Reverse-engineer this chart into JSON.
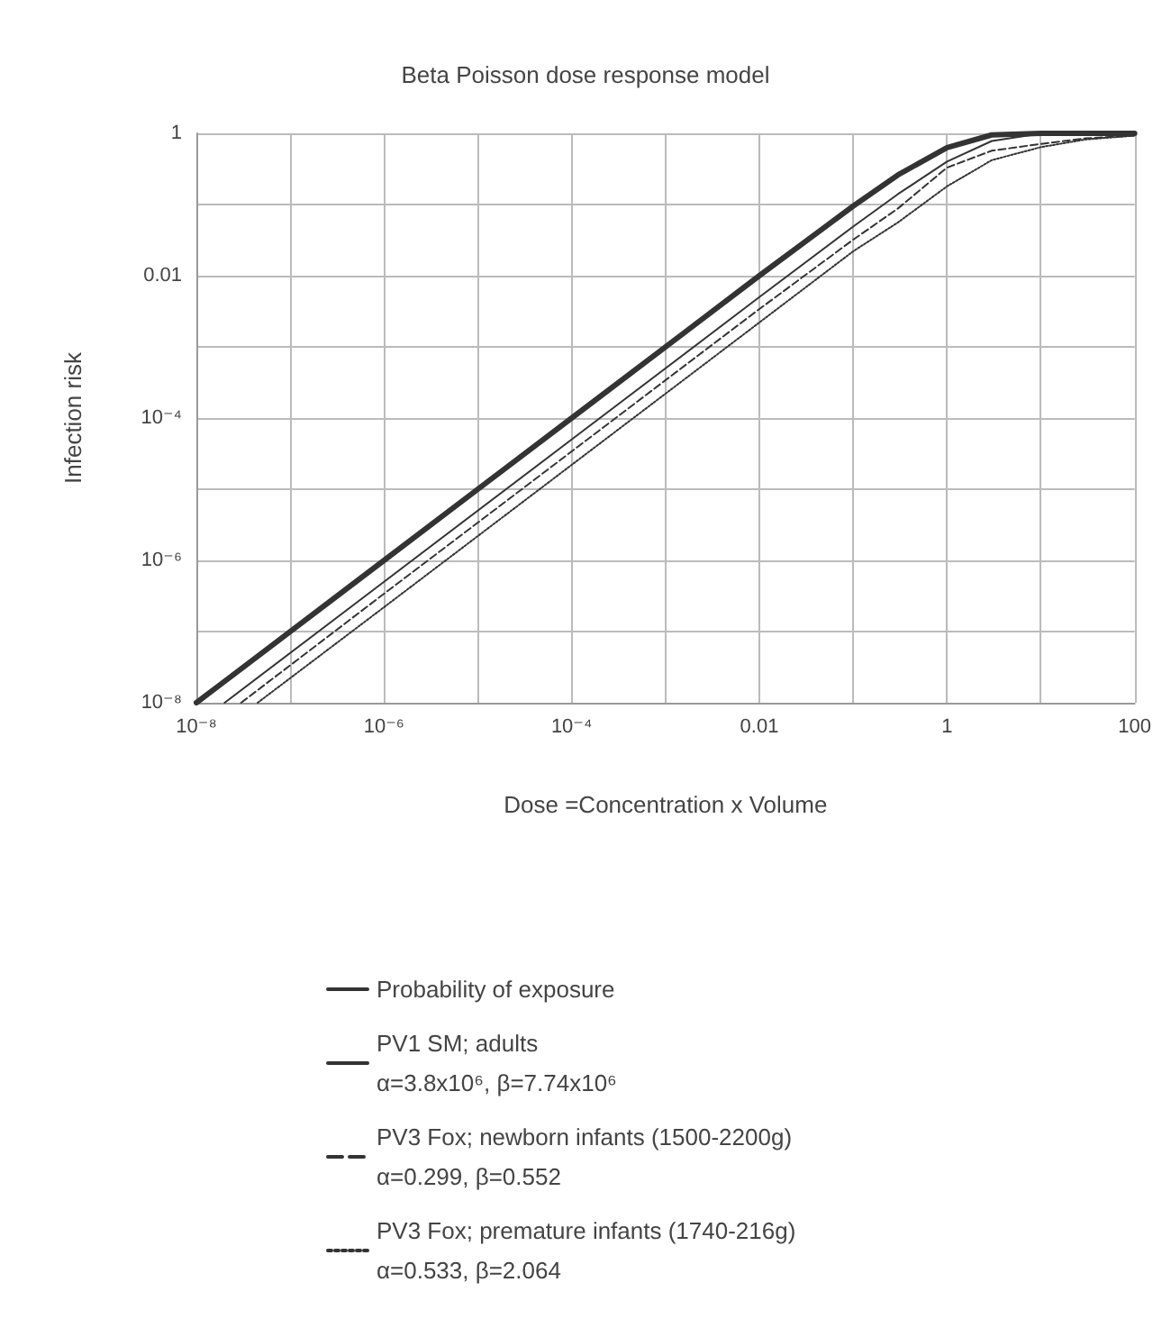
{
  "chart_data": {
    "type": "line",
    "title": "Beta Poisson dose response model",
    "xlabel": "Dose =Concentration x Volume",
    "ylabel": "Infection risk",
    "log": "xy",
    "grid": true,
    "legend": "bottom",
    "marker": "none",
    "xlim": [
      1e-08,
      100
    ],
    "xticks": [
      {
        "value": 1e-08,
        "label": "10⁻⁸"
      },
      {
        "value": 1e-06,
        "label": "10⁻⁶"
      },
      {
        "value": 0.0001,
        "label": "10⁻⁴"
      },
      0.01,
      1,
      100
    ],
    "ylim": [
      1e-08,
      1
    ],
    "yticks": [
      {
        "value": 1e-08,
        "label": "10⁻⁸"
      },
      {
        "value": 1e-06,
        "label": "10⁻⁶"
      },
      {
        "value": 0.0001,
        "label": "10⁻⁴"
      },
      0.01,
      1
    ],
    "series": [
      {
        "name": "Probability of exposure",
        "color": "#333333",
        "line_style": "solid",
        "x": [
          1e-08,
          1e-06,
          0.0001,
          0.01,
          0.1,
          0.3,
          1,
          3,
          10,
          100
        ],
        "values": [
          1e-08,
          1e-06,
          0.0001,
          0.01,
          0.095,
          0.26,
          0.63,
          0.95,
          1,
          1
        ]
      },
      {
        "name": "PV1 SM; adults\nα=3.8x10⁶, β=7.74x10⁶",
        "color": "#333333",
        "line_style": "solid",
        "x": [
          2e-08,
          1e-06,
          0.0001,
          0.01,
          0.1,
          0.3,
          1,
          3,
          10,
          100
        ],
        "values": [
          1e-08,
          5e-07,
          5e-05,
          0.005,
          0.049,
          0.14,
          0.4,
          0.78,
          0.99,
          1
        ]
      },
      {
        "name": "PV3 Fox; newborn infants (1500-2200g)\nα=0.299, β=0.552",
        "color": "#333333",
        "line_style": "dashed",
        "x": [
          3e-08,
          1e-06,
          0.0001,
          0.01,
          0.1,
          0.3,
          1,
          3,
          10,
          30,
          100
        ],
        "values": [
          1e-08,
          3.4e-07,
          3.4e-05,
          0.0034,
          0.032,
          0.088,
          0.33,
          0.57,
          0.71,
          0.85,
          0.93
        ]
      },
      {
        "name": "PV3 Fox; premature infants (1740-216g)\nα=0.533, β=2.064",
        "color": "#333333",
        "line_style": "dotted",
        "x": [
          4.5e-08,
          1e-06,
          0.0001,
          0.01,
          0.1,
          0.3,
          1,
          3,
          10,
          30,
          100
        ],
        "values": [
          1e-08,
          2.2e-07,
          2.2e-05,
          0.0022,
          0.022,
          0.056,
          0.18,
          0.42,
          0.64,
          0.82,
          0.93
        ]
      }
    ]
  }
}
